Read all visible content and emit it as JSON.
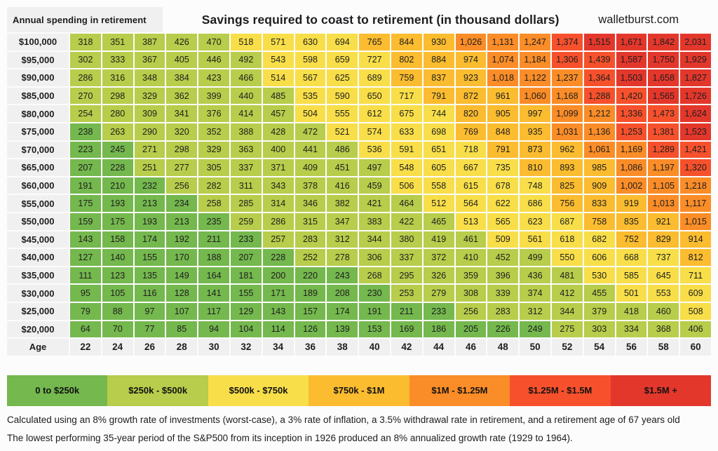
{
  "header": {
    "corner_label": "Annual spending in retirement",
    "title": "Savings required to coast to retirement (in thousand dollars)",
    "site": "walletburst.com"
  },
  "legend": [
    {
      "label": "0 to $250k",
      "color": "#74b84e"
    },
    {
      "label": "$250k - $500k",
      "color": "#b7cd4b"
    },
    {
      "label": "$500k - $750k",
      "color": "#f8de49"
    },
    {
      "label": "$750k - $1M",
      "color": "#fbbc30"
    },
    {
      "label": "$1M - $1.25M",
      "color": "#fb8d28"
    },
    {
      "label": "$1.25M - $1.5M",
      "color": "#f6512c"
    },
    {
      "label": "$1.5M +",
      "color": "#e4372c"
    }
  ],
  "footnotes": [
    "Calculated using an 8% growth rate of investments (worst-case), a 3% rate of inflation, a 3.5% withdrawal rate in retirement, and a retirement age of 67 years old",
    "The lowest performing 35-year period of the S&P500 from its inception in 1926 produced an 8% annualized growth rate (1929 to 1964)."
  ],
  "chart_data": {
    "type": "heatmap",
    "title": "Savings required to coast to retirement (in thousand dollars)",
    "x_label": "Age",
    "y_label": "Annual spending in retirement",
    "bucket_size": 250,
    "x": [
      22,
      24,
      26,
      28,
      30,
      32,
      34,
      36,
      38,
      40,
      42,
      44,
      46,
      48,
      50,
      52,
      54,
      56,
      58,
      60
    ],
    "y_categories": [
      "$100,000",
      "$95,000",
      "$90,000",
      "$85,000",
      "$80,000",
      "$75,000",
      "$70,000",
      "$65,000",
      "$60,000",
      "$55,000",
      "$50,000",
      "$45,000",
      "$40,000",
      "$35,000",
      "$30,000",
      "$25,000",
      "$20,000"
    ],
    "values": [
      [
        318,
        351,
        387,
        426,
        470,
        518,
        571,
        630,
        694,
        765,
        844,
        930,
        1026,
        1131,
        1247,
        1374,
        1515,
        1671,
        1842,
        2031
      ],
      [
        302,
        333,
        367,
        405,
        446,
        492,
        543,
        598,
        659,
        727,
        802,
        884,
        974,
        1074,
        1184,
        1306,
        1439,
        1587,
        1750,
        1929
      ],
      [
        286,
        316,
        348,
        384,
        423,
        466,
        514,
        567,
        625,
        689,
        759,
        837,
        923,
        1018,
        1122,
        1237,
        1364,
        1503,
        1658,
        1827
      ],
      [
        270,
        298,
        329,
        362,
        399,
        440,
        485,
        535,
        590,
        650,
        717,
        791,
        872,
        961,
        1060,
        1168,
        1288,
        1420,
        1565,
        1726
      ],
      [
        254,
        280,
        309,
        341,
        376,
        414,
        457,
        504,
        555,
        612,
        675,
        744,
        820,
        905,
        997,
        1099,
        1212,
        1336,
        1473,
        1624
      ],
      [
        238,
        263,
        290,
        320,
        352,
        388,
        428,
        472,
        521,
        574,
        633,
        698,
        769,
        848,
        935,
        1031,
        1136,
        1253,
        1381,
        1523
      ],
      [
        223,
        245,
        271,
        298,
        329,
        363,
        400,
        441,
        486,
        536,
        591,
        651,
        718,
        791,
        873,
        962,
        1061,
        1169,
        1289,
        1421
      ],
      [
        207,
        228,
        251,
        277,
        305,
        337,
        371,
        409,
        451,
        497,
        548,
        605,
        667,
        735,
        810,
        893,
        985,
        1086,
        1197,
        1320
      ],
      [
        191,
        210,
        232,
        256,
        282,
        311,
        343,
        378,
        416,
        459,
        506,
        558,
        615,
        678,
        748,
        825,
        909,
        1002,
        1105,
        1218
      ],
      [
        175,
        193,
        213,
        234,
        258,
        285,
        314,
        346,
        382,
        421,
        464,
        512,
        564,
        622,
        686,
        756,
        833,
        919,
        1013,
        1117
      ],
      [
        159,
        175,
        193,
        213,
        235,
        259,
        286,
        315,
        347,
        383,
        422,
        465,
        513,
        565,
        623,
        687,
        758,
        835,
        921,
        1015
      ],
      [
        143,
        158,
        174,
        192,
        211,
        233,
        257,
        283,
        312,
        344,
        380,
        419,
        461,
        509,
        561,
        618,
        682,
        752,
        829,
        914
      ],
      [
        127,
        140,
        155,
        170,
        188,
        207,
        228,
        252,
        278,
        306,
        337,
        372,
        410,
        452,
        499,
        550,
        606,
        668,
        737,
        812
      ],
      [
        111,
        123,
        135,
        149,
        164,
        181,
        200,
        220,
        243,
        268,
        295,
        326,
        359,
        396,
        436,
        481,
        530,
        585,
        645,
        711
      ],
      [
        95,
        105,
        116,
        128,
        141,
        155,
        171,
        189,
        208,
        230,
        253,
        279,
        308,
        339,
        374,
        412,
        455,
        501,
        553,
        609
      ],
      [
        79,
        88,
        97,
        107,
        117,
        129,
        143,
        157,
        174,
        191,
        211,
        233,
        256,
        283,
        312,
        344,
        379,
        418,
        460,
        508
      ],
      [
        64,
        70,
        77,
        85,
        94,
        104,
        114,
        126,
        139,
        153,
        169,
        186,
        205,
        226,
        249,
        275,
        303,
        334,
        368,
        406
      ]
    ]
  }
}
